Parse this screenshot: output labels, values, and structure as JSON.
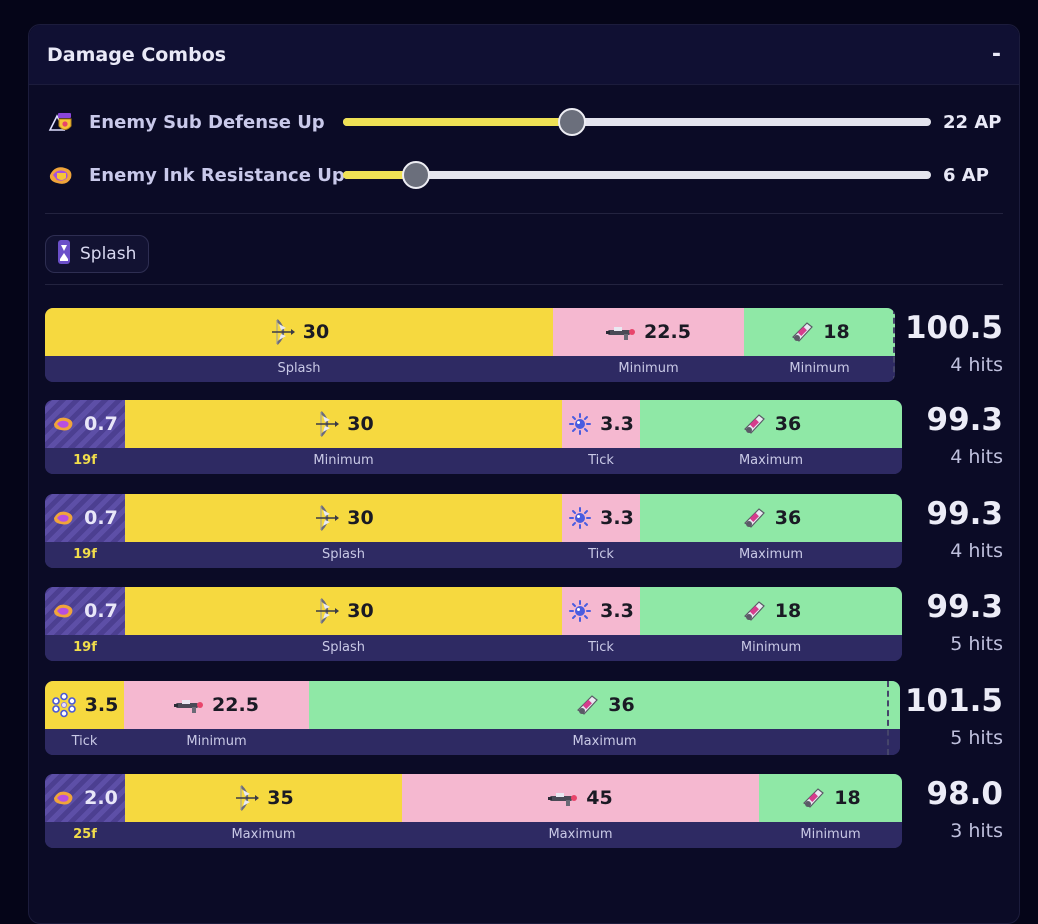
{
  "panel": {
    "title": "Damage Combos",
    "collapse_label": "-"
  },
  "sliders": [
    {
      "label": "Enemy Sub Defense Up",
      "value": "22 AP",
      "fraction": 0.39,
      "icon": "sub-defense-up-icon"
    },
    {
      "label": "Enemy Ink Resistance Up",
      "value": "6 AP",
      "fraction": 0.124,
      "icon": "ink-resistance-up-icon"
    }
  ],
  "filter_chip": {
    "label": "Splash",
    "icon": "splash-icon"
  },
  "colors": {
    "yellow": "#f6d93f",
    "pink": "#f5b8d0",
    "green": "#8fe8a6",
    "accent": "#efe155",
    "bar_bg": "#2e2a63"
  },
  "combos": [
    {
      "total": "100.5",
      "hits": "4 hits",
      "segments": [
        {
          "value": "30",
          "sub": "Splash",
          "color": "yellow",
          "icon": "bow-weapon-icon"
        },
        {
          "value": "22.5",
          "sub": "Minimum",
          "color": "pink",
          "icon": "rifle-weapon-icon"
        },
        {
          "value": "18",
          "sub": "Minimum",
          "color": "green",
          "icon": "blaster-weapon-icon"
        }
      ]
    },
    {
      "total": "99.3",
      "hits": "4 hits",
      "segments": [
        {
          "value": "0.7",
          "sub": "19f",
          "color": "stripe",
          "icon": "ink-damage-icon"
        },
        {
          "value": "30",
          "sub": "Minimum",
          "color": "yellow",
          "icon": "bow-weapon-icon"
        },
        {
          "value": "3.3",
          "sub": "Tick",
          "color": "pink",
          "icon": "toxic-mist-icon"
        },
        {
          "value": "36",
          "sub": "Maximum",
          "color": "green",
          "icon": "blaster-weapon-icon"
        }
      ]
    },
    {
      "total": "99.3",
      "hits": "4 hits",
      "segments": [
        {
          "value": "0.7",
          "sub": "19f",
          "color": "stripe",
          "icon": "ink-damage-icon"
        },
        {
          "value": "30",
          "sub": "Splash",
          "color": "yellow",
          "icon": "bow-weapon-icon"
        },
        {
          "value": "3.3",
          "sub": "Tick",
          "color": "pink",
          "icon": "toxic-mist-icon"
        },
        {
          "value": "36",
          "sub": "Maximum",
          "color": "green",
          "icon": "blaster-weapon-icon"
        }
      ]
    },
    {
      "total": "99.3",
      "hits": "5 hits",
      "segments": [
        {
          "value": "0.7",
          "sub": "19f",
          "color": "stripe",
          "icon": "ink-damage-icon"
        },
        {
          "value": "30",
          "sub": "Splash",
          "color": "yellow",
          "icon": "bow-weapon-icon"
        },
        {
          "value": "3.3",
          "sub": "Tick",
          "color": "pink",
          "icon": "toxic-mist-icon"
        },
        {
          "value": "18",
          "sub": "Minimum",
          "color": "green",
          "icon": "blaster-weapon-icon"
        }
      ]
    },
    {
      "total": "101.5",
      "hits": "5 hits",
      "segments": [
        {
          "value": "3.5",
          "sub": "Tick",
          "color": "yellow",
          "icon": "bubble-ring-icon"
        },
        {
          "value": "22.5",
          "sub": "Minimum",
          "color": "pink",
          "icon": "rifle-weapon-icon"
        },
        {
          "value": "36",
          "sub": "Maximum",
          "color": "green",
          "icon": "blaster-weapon-icon"
        }
      ]
    },
    {
      "total": "98.0",
      "hits": "3 hits",
      "segments": [
        {
          "value": "2.0",
          "sub": "25f",
          "color": "stripe",
          "icon": "ink-damage-icon"
        },
        {
          "value": "35",
          "sub": "Maximum",
          "color": "yellow",
          "icon": "bow-weapon-icon"
        },
        {
          "value": "45",
          "sub": "Maximum",
          "color": "pink",
          "icon": "rifle-weapon-icon"
        },
        {
          "value": "18",
          "sub": "Minimum",
          "color": "green",
          "icon": "blaster-weapon-icon"
        }
      ]
    }
  ]
}
